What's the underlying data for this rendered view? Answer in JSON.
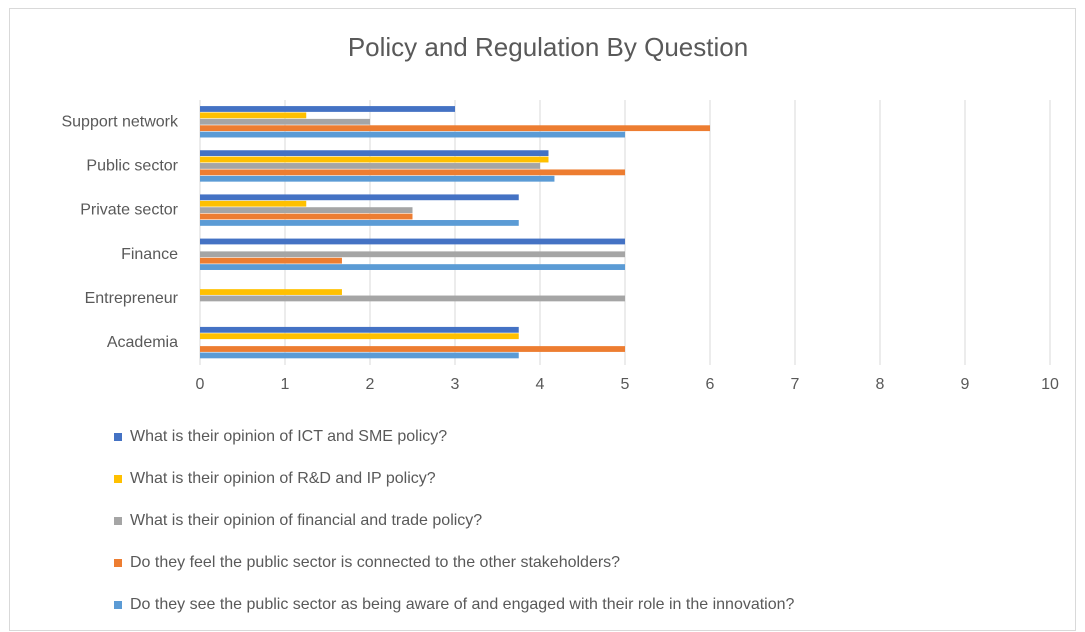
{
  "chart_data": {
    "type": "bar",
    "orientation": "horizontal",
    "title": "Policy and Regulation By Question",
    "categories": [
      "Support network",
      "Public sector",
      "Private sector",
      "Finance",
      "Entrepreneur",
      "Academia"
    ],
    "series": [
      {
        "name": "What is their opinion of ICT and SME policy?",
        "color": "#4472c4",
        "values": [
          3,
          4.1,
          3.75,
          5,
          0,
          3.75
        ]
      },
      {
        "name": "What is their opinion of R&D and IP policy?",
        "color": "#ffc000",
        "values": [
          1.25,
          4.1,
          1.25,
          0,
          1.67,
          3.75
        ]
      },
      {
        "name": "What is their opinion of financial and trade policy?",
        "color": "#a5a5a5",
        "values": [
          2,
          4,
          2.5,
          5,
          5,
          0
        ]
      },
      {
        "name": "Do they feel the public sector is connected to the other stakeholders?",
        "color": "#ed7d31",
        "values": [
          6,
          5,
          2.5,
          1.67,
          0,
          5
        ]
      },
      {
        "name": "Do they see the public sector as being aware of and engaged with their role in the innovation?",
        "color": "#5b9bd5",
        "values": [
          5,
          4.17,
          3.75,
          5,
          0,
          3.75
        ]
      }
    ],
    "xlim": [
      0,
      10
    ],
    "xticks": [
      0,
      1,
      2,
      3,
      4,
      5,
      6,
      7,
      8,
      9,
      10
    ],
    "grid": true,
    "legend": "bottom"
  }
}
